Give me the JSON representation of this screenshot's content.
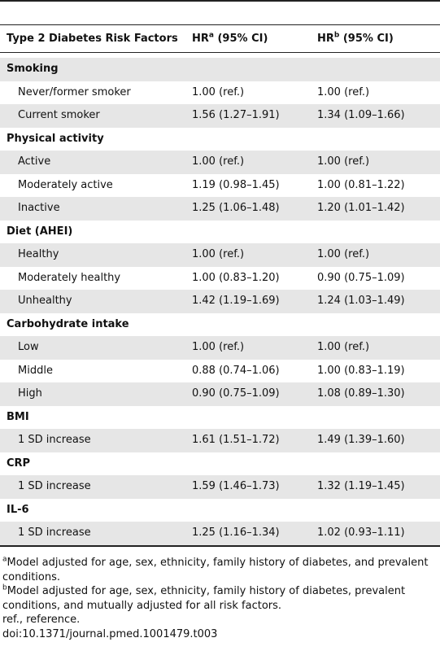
{
  "table": {
    "header": [
      {
        "text": "Type 2 Diabetes Risk Factors"
      },
      {
        "text": "HR",
        "sup": "a",
        "rest": " (95% CI)"
      },
      {
        "text": "HR",
        "sup": "b",
        "rest": " (95% CI)"
      }
    ],
    "rows": [
      [
        "Smoking"
      ],
      [
        "Never/former smoker",
        "1.00 (ref.)",
        "1.00 (ref.)"
      ],
      [
        "Current smoker",
        "1.56 (1.27–1.91)",
        "1.34 (1.09–1.66)"
      ],
      [
        "Physical activity"
      ],
      [
        "Active",
        "1.00 (ref.)",
        "1.00 (ref.)"
      ],
      [
        "Moderately active",
        "1.19 (0.98–1.45)",
        "1.00 (0.81–1.22)"
      ],
      [
        "Inactive",
        "1.25 (1.06–1.48)",
        "1.20 (1.01–1.42)"
      ],
      [
        "Diet (AHEI)"
      ],
      [
        "Healthy",
        "1.00 (ref.)",
        "1.00 (ref.)"
      ],
      [
        "Moderately healthy",
        "1.00 (0.83–1.20)",
        "0.90 (0.75–1.09)"
      ],
      [
        "Unhealthy",
        "1.42 (1.19–1.69)",
        "1.24 (1.03–1.49)"
      ],
      [
        "Carbohydrate intake"
      ],
      [
        "Low",
        "1.00 (ref.)",
        "1.00 (ref.)"
      ],
      [
        "Middle",
        "0.88 (0.74–1.06)",
        "1.00 (0.83–1.19)"
      ],
      [
        "High",
        "0.90 (0.75–1.09)",
        "1.08 (0.89–1.30)"
      ],
      [
        "BMI"
      ],
      [
        "1 SD increase",
        "1.61 (1.51–1.72)",
        "1.49 (1.39–1.60)"
      ],
      [
        "CRP"
      ],
      [
        "1 SD increase",
        "1.59 (1.46–1.73)",
        "1.32 (1.19–1.45)"
      ],
      [
        "IL-6"
      ],
      [
        "1 SD increase",
        "1.25 (1.16–1.34)",
        "1.02 (0.93–1.11)"
      ]
    ]
  },
  "footnotes": [
    {
      "sup": "a",
      "text": "Model adjusted for age, sex, ethnicity, family history of diabetes, and prevalent conditions."
    },
    {
      "sup": "b",
      "text": "Model adjusted for age, sex, ethnicity, family history of diabetes, prevalent conditions, and mutually adjusted for all risk factors."
    },
    {
      "text": "ref., reference."
    },
    {
      "text": "doi:10.1371/journal.pmed.1001479.t003"
    }
  ]
}
